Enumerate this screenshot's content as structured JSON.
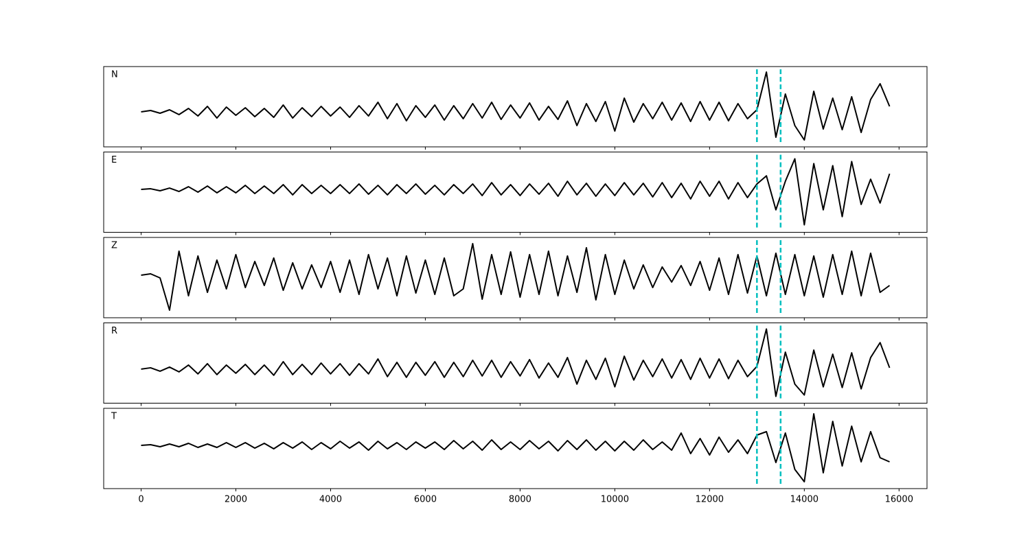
{
  "chart_data": {
    "type": "line",
    "layout": "stacked",
    "x": [
      0,
      200,
      400,
      600,
      800,
      1000,
      1200,
      1400,
      1600,
      1800,
      2000,
      2200,
      2400,
      2600,
      2800,
      3000,
      3200,
      3400,
      3600,
      3800,
      4000,
      4200,
      4400,
      4600,
      4800,
      5000,
      5200,
      5400,
      5600,
      5800,
      6000,
      6200,
      6400,
      6600,
      6800,
      7000,
      7200,
      7400,
      7600,
      7800,
      8000,
      8200,
      8400,
      8600,
      8800,
      9000,
      9200,
      9400,
      9600,
      9800,
      10000,
      10200,
      10400,
      10600,
      10800,
      11000,
      11200,
      11400,
      11600,
      11800,
      12000,
      12200,
      12400,
      12600,
      12800,
      13000,
      13200,
      13400,
      13600,
      13800,
      14000,
      14200,
      14400,
      14600,
      14800,
      15000,
      15200,
      15400,
      15600,
      15800
    ],
    "xlim": [
      -790,
      16590
    ],
    "xticks": [
      0,
      2000,
      4000,
      6000,
      8000,
      10000,
      12000,
      14000,
      16000
    ],
    "vlines": {
      "values": [
        13000,
        13500
      ],
      "color": "#00bfbf"
    },
    "series": [
      {
        "name": "N",
        "color": "#000000",
        "ylim": [
          -51,
          66
        ],
        "values": [
          0,
          2,
          -2,
          3,
          -4,
          5,
          -6,
          8,
          -9,
          7,
          -5,
          6,
          -7,
          5,
          -8,
          10,
          -9,
          6,
          -7,
          8,
          -6,
          7,
          -8,
          9,
          -6,
          14,
          -10,
          12,
          -13,
          9,
          -8,
          10,
          -12,
          9,
          -10,
          12,
          -9,
          14,
          -11,
          10,
          -9,
          13,
          -12,
          8,
          -11,
          16,
          -20,
          12,
          -14,
          15,
          -28,
          20,
          -15,
          12,
          -10,
          14,
          -12,
          13,
          -14,
          15,
          -12,
          14,
          -13,
          12,
          -10,
          3,
          58,
          -37,
          26,
          -20,
          -41,
          30,
          -25,
          20,
          -26,
          22,
          -30,
          18,
          41,
          8
        ]
      },
      {
        "name": "E",
        "color": "#000000",
        "ylim": [
          -63,
          55
        ],
        "values": [
          0,
          1,
          -2,
          2,
          -3,
          4,
          -4,
          5,
          -5,
          4,
          -5,
          6,
          -6,
          5,
          -6,
          7,
          -8,
          7,
          -6,
          6,
          -6,
          7,
          -6,
          8,
          -7,
          6,
          -8,
          7,
          -6,
          8,
          -7,
          6,
          -8,
          7,
          -6,
          8,
          -9,
          10,
          -8,
          7,
          -9,
          8,
          -7,
          9,
          -10,
          12,
          -8,
          9,
          -10,
          8,
          -9,
          10,
          -8,
          9,
          -11,
          10,
          -12,
          9,
          -14,
          12,
          -10,
          12,
          -14,
          10,
          -12,
          8,
          20,
          -30,
          12,
          45,
          -52,
          38,
          -30,
          35,
          -40,
          41,
          -22,
          15,
          -20,
          23
        ]
      },
      {
        "name": "Z",
        "color": "#000000",
        "ylim": [
          -62,
          55
        ],
        "values": [
          0,
          2,
          -4,
          -51,
          35,
          -30,
          28,
          -25,
          22,
          -20,
          30,
          -18,
          20,
          -15,
          25,
          -22,
          18,
          -20,
          15,
          -18,
          20,
          -25,
          22,
          -28,
          30,
          -20,
          25,
          -30,
          28,
          -26,
          22,
          -28,
          25,
          -30,
          -20,
          46,
          -35,
          30,
          -28,
          34,
          -32,
          30,
          -28,
          35,
          -30,
          28,
          -25,
          40,
          -36,
          30,
          -28,
          22,
          -20,
          15,
          -18,
          12,
          -10,
          14,
          -15,
          20,
          -22,
          25,
          -28,
          30,
          -26,
          28,
          -30,
          32,
          -28,
          30,
          -30,
          28,
          -32,
          30,
          -28,
          35,
          -30,
          32,
          -25,
          -15
        ]
      },
      {
        "name": "R",
        "color": "#000000",
        "ylim": [
          -50,
          68
        ],
        "values": [
          0,
          2,
          -3,
          3,
          -4,
          6,
          -7,
          8,
          -8,
          6,
          -6,
          7,
          -8,
          6,
          -9,
          11,
          -8,
          7,
          -8,
          9,
          -7,
          8,
          -9,
          8,
          -7,
          15,
          -11,
          10,
          -12,
          10,
          -9,
          11,
          -12,
          10,
          -11,
          13,
          -10,
          13,
          -12,
          11,
          -10,
          14,
          -13,
          9,
          -12,
          17,
          -22,
          13,
          -15,
          16,
          -26,
          19,
          -16,
          13,
          -11,
          15,
          -13,
          14,
          -15,
          16,
          -13,
          15,
          -14,
          13,
          -11,
          4,
          59,
          -40,
          25,
          -22,
          -38,
          28,
          -26,
          22,
          -27,
          24,
          -29,
          17,
          39,
          2
        ]
      },
      {
        "name": "T",
        "color": "#000000",
        "ylim": [
          -63,
          54
        ],
        "values": [
          0,
          1,
          -2,
          2,
          -2,
          3,
          -3,
          2,
          -3,
          4,
          -3,
          4,
          -4,
          3,
          -5,
          4,
          -4,
          5,
          -6,
          4,
          -5,
          6,
          -4,
          5,
          -7,
          6,
          -5,
          4,
          -6,
          5,
          -4,
          5,
          -6,
          7,
          -5,
          6,
          -7,
          8,
          -6,
          5,
          -6,
          7,
          -5,
          6,
          -8,
          7,
          -6,
          8,
          -7,
          6,
          -8,
          6,
          -7,
          8,
          -6,
          5,
          -7,
          18,
          -12,
          10,
          -14,
          12,
          -10,
          8,
          -12,
          15,
          20,
          -25,
          18,
          -35,
          -53,
          46,
          -40,
          35,
          -30,
          28,
          -24,
          20,
          -18,
          -24
        ]
      }
    ]
  }
}
